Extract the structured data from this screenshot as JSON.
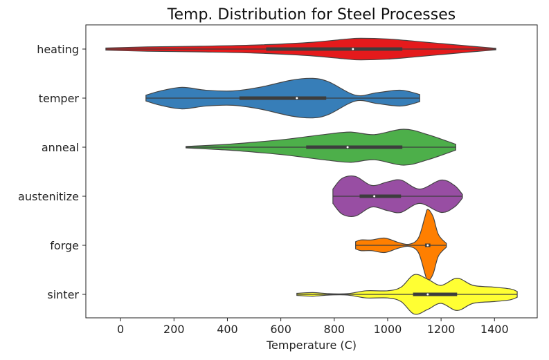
{
  "chart_data": {
    "type": "violin",
    "orientation": "horizontal",
    "title": "Temp. Distribution for Steel Processes",
    "xlabel": "Temperature (C)",
    "ylabel": "",
    "xlim": [
      -130,
      1560
    ],
    "xticks": [
      0,
      200,
      400,
      600,
      800,
      1000,
      1200,
      1400
    ],
    "grid": false,
    "categories": [
      "heating",
      "temper",
      "anneal",
      "austenitize",
      "forge",
      "sinter"
    ],
    "series": [
      {
        "category": "heating",
        "color": "#e41a1c",
        "min": -55,
        "q1": 545,
        "median": 870,
        "q3": 1055,
        "max": 1405,
        "density": [
          [
            -55,
            0.03
          ],
          [
            100,
            0.06
          ],
          [
            300,
            0.08
          ],
          [
            500,
            0.11
          ],
          [
            700,
            0.18
          ],
          [
            850,
            0.28
          ],
          [
            900,
            0.3
          ],
          [
            1000,
            0.28
          ],
          [
            1100,
            0.22
          ],
          [
            1250,
            0.12
          ],
          [
            1405,
            0.02
          ]
        ]
      },
      {
        "category": "temper",
        "color": "#377eb8",
        "min": 95,
        "q1": 445,
        "median": 660,
        "q3": 770,
        "max": 1120,
        "density": [
          [
            95,
            0.08
          ],
          [
            150,
            0.2
          ],
          [
            230,
            0.3
          ],
          [
            320,
            0.22
          ],
          [
            420,
            0.2
          ],
          [
            520,
            0.3
          ],
          [
            640,
            0.5
          ],
          [
            720,
            0.55
          ],
          [
            780,
            0.45
          ],
          [
            880,
            0.08
          ],
          [
            960,
            0.15
          ],
          [
            1050,
            0.22
          ],
          [
            1120,
            0.1
          ]
        ]
      },
      {
        "category": "anneal",
        "color": "#4daf4a",
        "min": 245,
        "q1": 695,
        "median": 850,
        "q3": 1055,
        "max": 1255,
        "density": [
          [
            245,
            0.02
          ],
          [
            400,
            0.08
          ],
          [
            520,
            0.15
          ],
          [
            620,
            0.22
          ],
          [
            760,
            0.35
          ],
          [
            860,
            0.42
          ],
          [
            950,
            0.35
          ],
          [
            1060,
            0.5
          ],
          [
            1150,
            0.35
          ],
          [
            1255,
            0.08
          ]
        ]
      },
      {
        "category": "austenitize",
        "color": "#984ea3",
        "min": 795,
        "q1": 895,
        "median": 950,
        "q3": 1050,
        "max": 1280,
        "density": [
          [
            795,
            0.2
          ],
          [
            830,
            0.5
          ],
          [
            880,
            0.55
          ],
          [
            940,
            0.3
          ],
          [
            1000,
            0.4
          ],
          [
            1050,
            0.45
          ],
          [
            1120,
            0.2
          ],
          [
            1200,
            0.45
          ],
          [
            1250,
            0.3
          ],
          [
            1280,
            0.05
          ]
        ]
      },
      {
        "category": "forge",
        "color": "#ff7f00",
        "min": 880,
        "q1": 1140,
        "median": 1150,
        "q3": 1160,
        "max": 1220,
        "density": [
          [
            880,
            0.1
          ],
          [
            900,
            0.15
          ],
          [
            940,
            0.15
          ],
          [
            990,
            0.2
          ],
          [
            1040,
            0.08
          ],
          [
            1080,
            0.03
          ],
          [
            1115,
            0.2
          ],
          [
            1140,
            0.8
          ],
          [
            1150,
            1.0
          ],
          [
            1170,
            0.8
          ],
          [
            1190,
            0.3
          ],
          [
            1220,
            0.05
          ]
        ]
      },
      {
        "category": "sinter",
        "color": "#ffff33",
        "min": 660,
        "q1": 1095,
        "median": 1150,
        "q3": 1260,
        "max": 1485,
        "density": [
          [
            660,
            0.03
          ],
          [
            720,
            0.05
          ],
          [
            780,
            0.02
          ],
          [
            850,
            0.02
          ],
          [
            920,
            0.1
          ],
          [
            1000,
            0.1
          ],
          [
            1050,
            0.2
          ],
          [
            1100,
            0.55
          ],
          [
            1150,
            0.42
          ],
          [
            1200,
            0.25
          ],
          [
            1260,
            0.45
          ],
          [
            1320,
            0.25
          ],
          [
            1400,
            0.2
          ],
          [
            1460,
            0.15
          ],
          [
            1485,
            0.08
          ]
        ]
      }
    ]
  }
}
